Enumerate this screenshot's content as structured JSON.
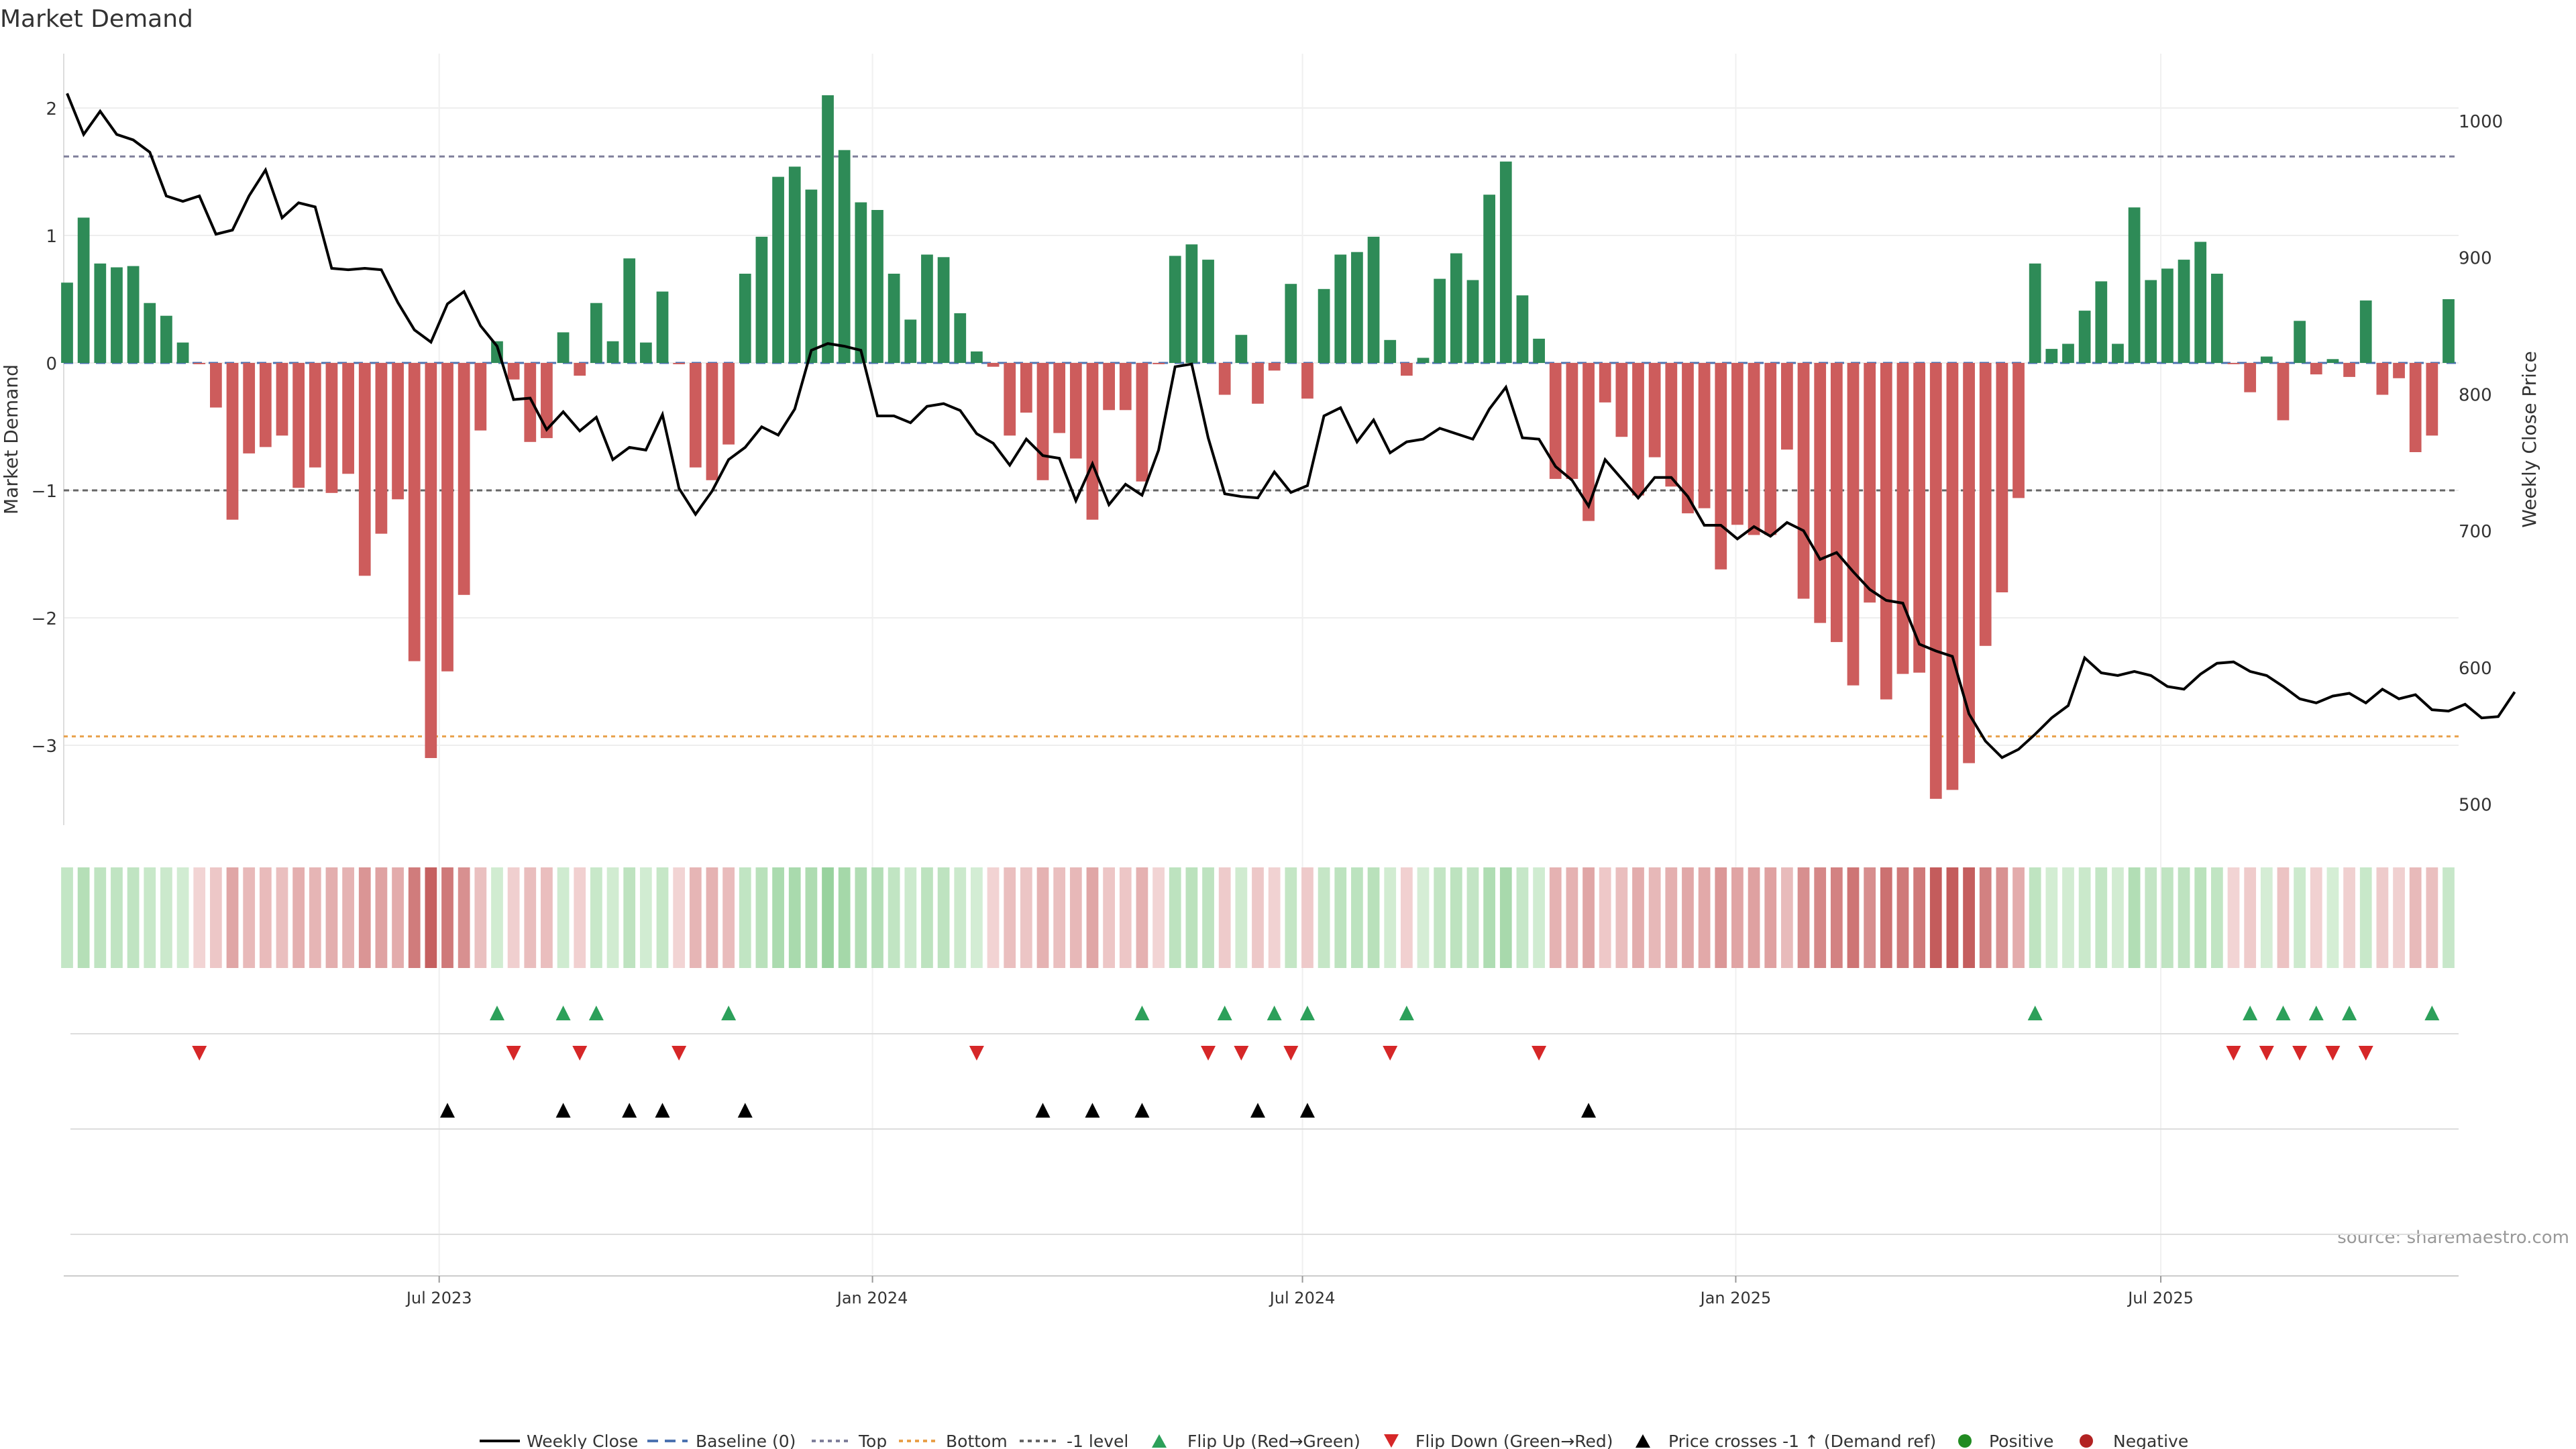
{
  "chart_data": {
    "type": "bar",
    "title": "Market Demand",
    "ylabel": "Market Demand",
    "y2label": "Weekly Close Price",
    "ylim": [
      -3.6,
      2.2
    ],
    "yticks": [
      -3,
      -2,
      -1,
      0,
      1,
      2
    ],
    "y2lim": [
      487,
      1028
    ],
    "y2ticks": [
      500,
      600,
      700,
      800,
      900,
      1000
    ],
    "xticks": [
      "Jul 2023",
      "Jan 2024",
      "Jul 2024",
      "Jan 2025",
      "Jul 2025"
    ],
    "reference_lines": {
      "top": 1.62,
      "bottom": -2.93,
      "minus_one": -1.0
    },
    "source": "source: sharemaestro.com",
    "legend_position": "bottom",
    "legend": [
      "Weekly Close",
      "Baseline (0)",
      "Top",
      "Bottom",
      "-1 level",
      "Flip Up (Red→Green)",
      "Flip Down (Green→Red)",
      "Price crosses -1 ↑ (Demand ref)",
      "Positive",
      "Negative"
    ],
    "colors": {
      "positive": "#2e8b57",
      "negative": "#cd5c5c",
      "line": "#000000",
      "baseline": "#4c72b0",
      "top_line": "#7f7f9a",
      "bottom_line": "#e8a04a",
      "flip_up": "#2ca05a",
      "flip_down": "#d62728",
      "cross": "#000000",
      "pos_dot": "#228b22",
      "neg_dot": "#b22222"
    },
    "demand": [
      0.63,
      1.14,
      0.78,
      0.75,
      0.76,
      0.47,
      0.37,
      0.16,
      -0.01,
      -0.35,
      -1.23,
      -0.71,
      -0.66,
      -0.57,
      -0.98,
      -0.82,
      -1.02,
      -0.87,
      -1.67,
      -1.34,
      -1.07,
      -2.34,
      -3.1,
      -2.42,
      -1.82,
      -0.53,
      0.17,
      -0.13,
      -0.62,
      -0.59,
      0.24,
      -0.1,
      0.47,
      0.17,
      0.82,
      0.16,
      0.56,
      -0.01,
      -0.82,
      -0.92,
      -0.64,
      0.7,
      0.99,
      1.46,
      1.54,
      1.36,
      2.1,
      1.67,
      1.26,
      1.2,
      0.7,
      0.34,
      0.85,
      0.83,
      0.39,
      0.09,
      -0.03,
      -0.57,
      -0.39,
      -0.92,
      -0.55,
      -0.75,
      -1.23,
      -0.37,
      -0.37,
      -0.93,
      -0.01,
      0.84,
      0.93,
      0.81,
      -0.25,
      0.22,
      -0.32,
      -0.06,
      0.62,
      -0.28,
      0.58,
      0.85,
      0.87,
      0.99,
      0.18,
      -0.1,
      0.04,
      0.66,
      0.86,
      0.65,
      1.32,
      1.58,
      0.53,
      0.19,
      -0.91,
      -0.91,
      -1.24,
      -0.31,
      -0.58,
      -1.04,
      -0.74,
      -0.97,
      -1.18,
      -1.14,
      -1.62,
      -1.27,
      -1.35,
      -1.35,
      -0.68,
      -1.85,
      -2.04,
      -2.19,
      -2.53,
      -1.88,
      -2.64,
      -2.44,
      -2.43,
      -3.42,
      -3.35,
      -3.14,
      -2.22,
      -1.8,
      -1.06,
      0.78,
      0.11,
      0.15,
      0.41,
      0.64,
      0.15,
      1.22,
      0.65,
      0.74,
      0.81,
      0.95,
      0.7,
      -0.01,
      -0.23,
      0.05,
      -0.45,
      0.33,
      -0.09,
      0.03,
      -0.11,
      0.49,
      -0.25,
      -0.12,
      -0.7,
      -0.57,
      0.5
    ],
    "price": [
      1020,
      990,
      1007,
      990,
      986,
      977,
      945,
      941,
      945,
      917,
      920,
      945,
      964,
      929,
      940,
      937,
      892,
      891,
      892,
      891,
      867,
      847,
      838,
      866,
      875,
      850,
      835,
      796,
      797,
      774,
      787,
      773,
      783,
      752,
      761,
      759,
      785,
      731,
      712,
      729,
      752,
      761,
      776,
      770,
      789,
      832,
      837,
      835,
      832,
      784,
      784,
      779,
      791,
      793,
      788,
      771,
      764,
      748,
      767,
      755,
      753,
      722,
      749,
      719,
      734,
      726,
      759,
      820,
      822,
      768,
      727,
      725,
      724,
      743,
      728,
      733,
      784,
      790,
      765,
      781,
      757,
      765,
      767,
      775,
      771,
      767,
      789,
      805,
      768,
      767,
      747,
      737,
      718,
      752,
      738,
      724,
      739,
      739,
      725,
      704,
      704,
      694,
      703,
      696,
      706,
      700,
      679,
      684,
      670,
      657,
      649,
      647,
      617,
      612,
      608,
      566,
      546,
      534,
      540,
      551,
      563,
      572,
      607,
      596,
      594,
      597,
      594,
      586,
      584,
      595,
      603,
      604,
      597,
      594,
      586,
      577,
      574,
      579,
      581,
      574,
      584,
      577,
      580,
      569,
      568,
      573,
      563,
      564,
      582
    ],
    "flip_up": [
      26,
      30,
      32,
      40,
      65,
      70,
      73,
      75,
      81,
      119,
      132,
      134,
      136,
      138,
      143
    ],
    "flip_down": [
      8,
      27,
      31,
      37,
      55,
      69,
      71,
      74,
      80,
      89,
      131,
      133,
      135,
      137,
      139
    ],
    "crosses": [
      23,
      30,
      34,
      36,
      41,
      59,
      62,
      65,
      72,
      75,
      92
    ]
  }
}
